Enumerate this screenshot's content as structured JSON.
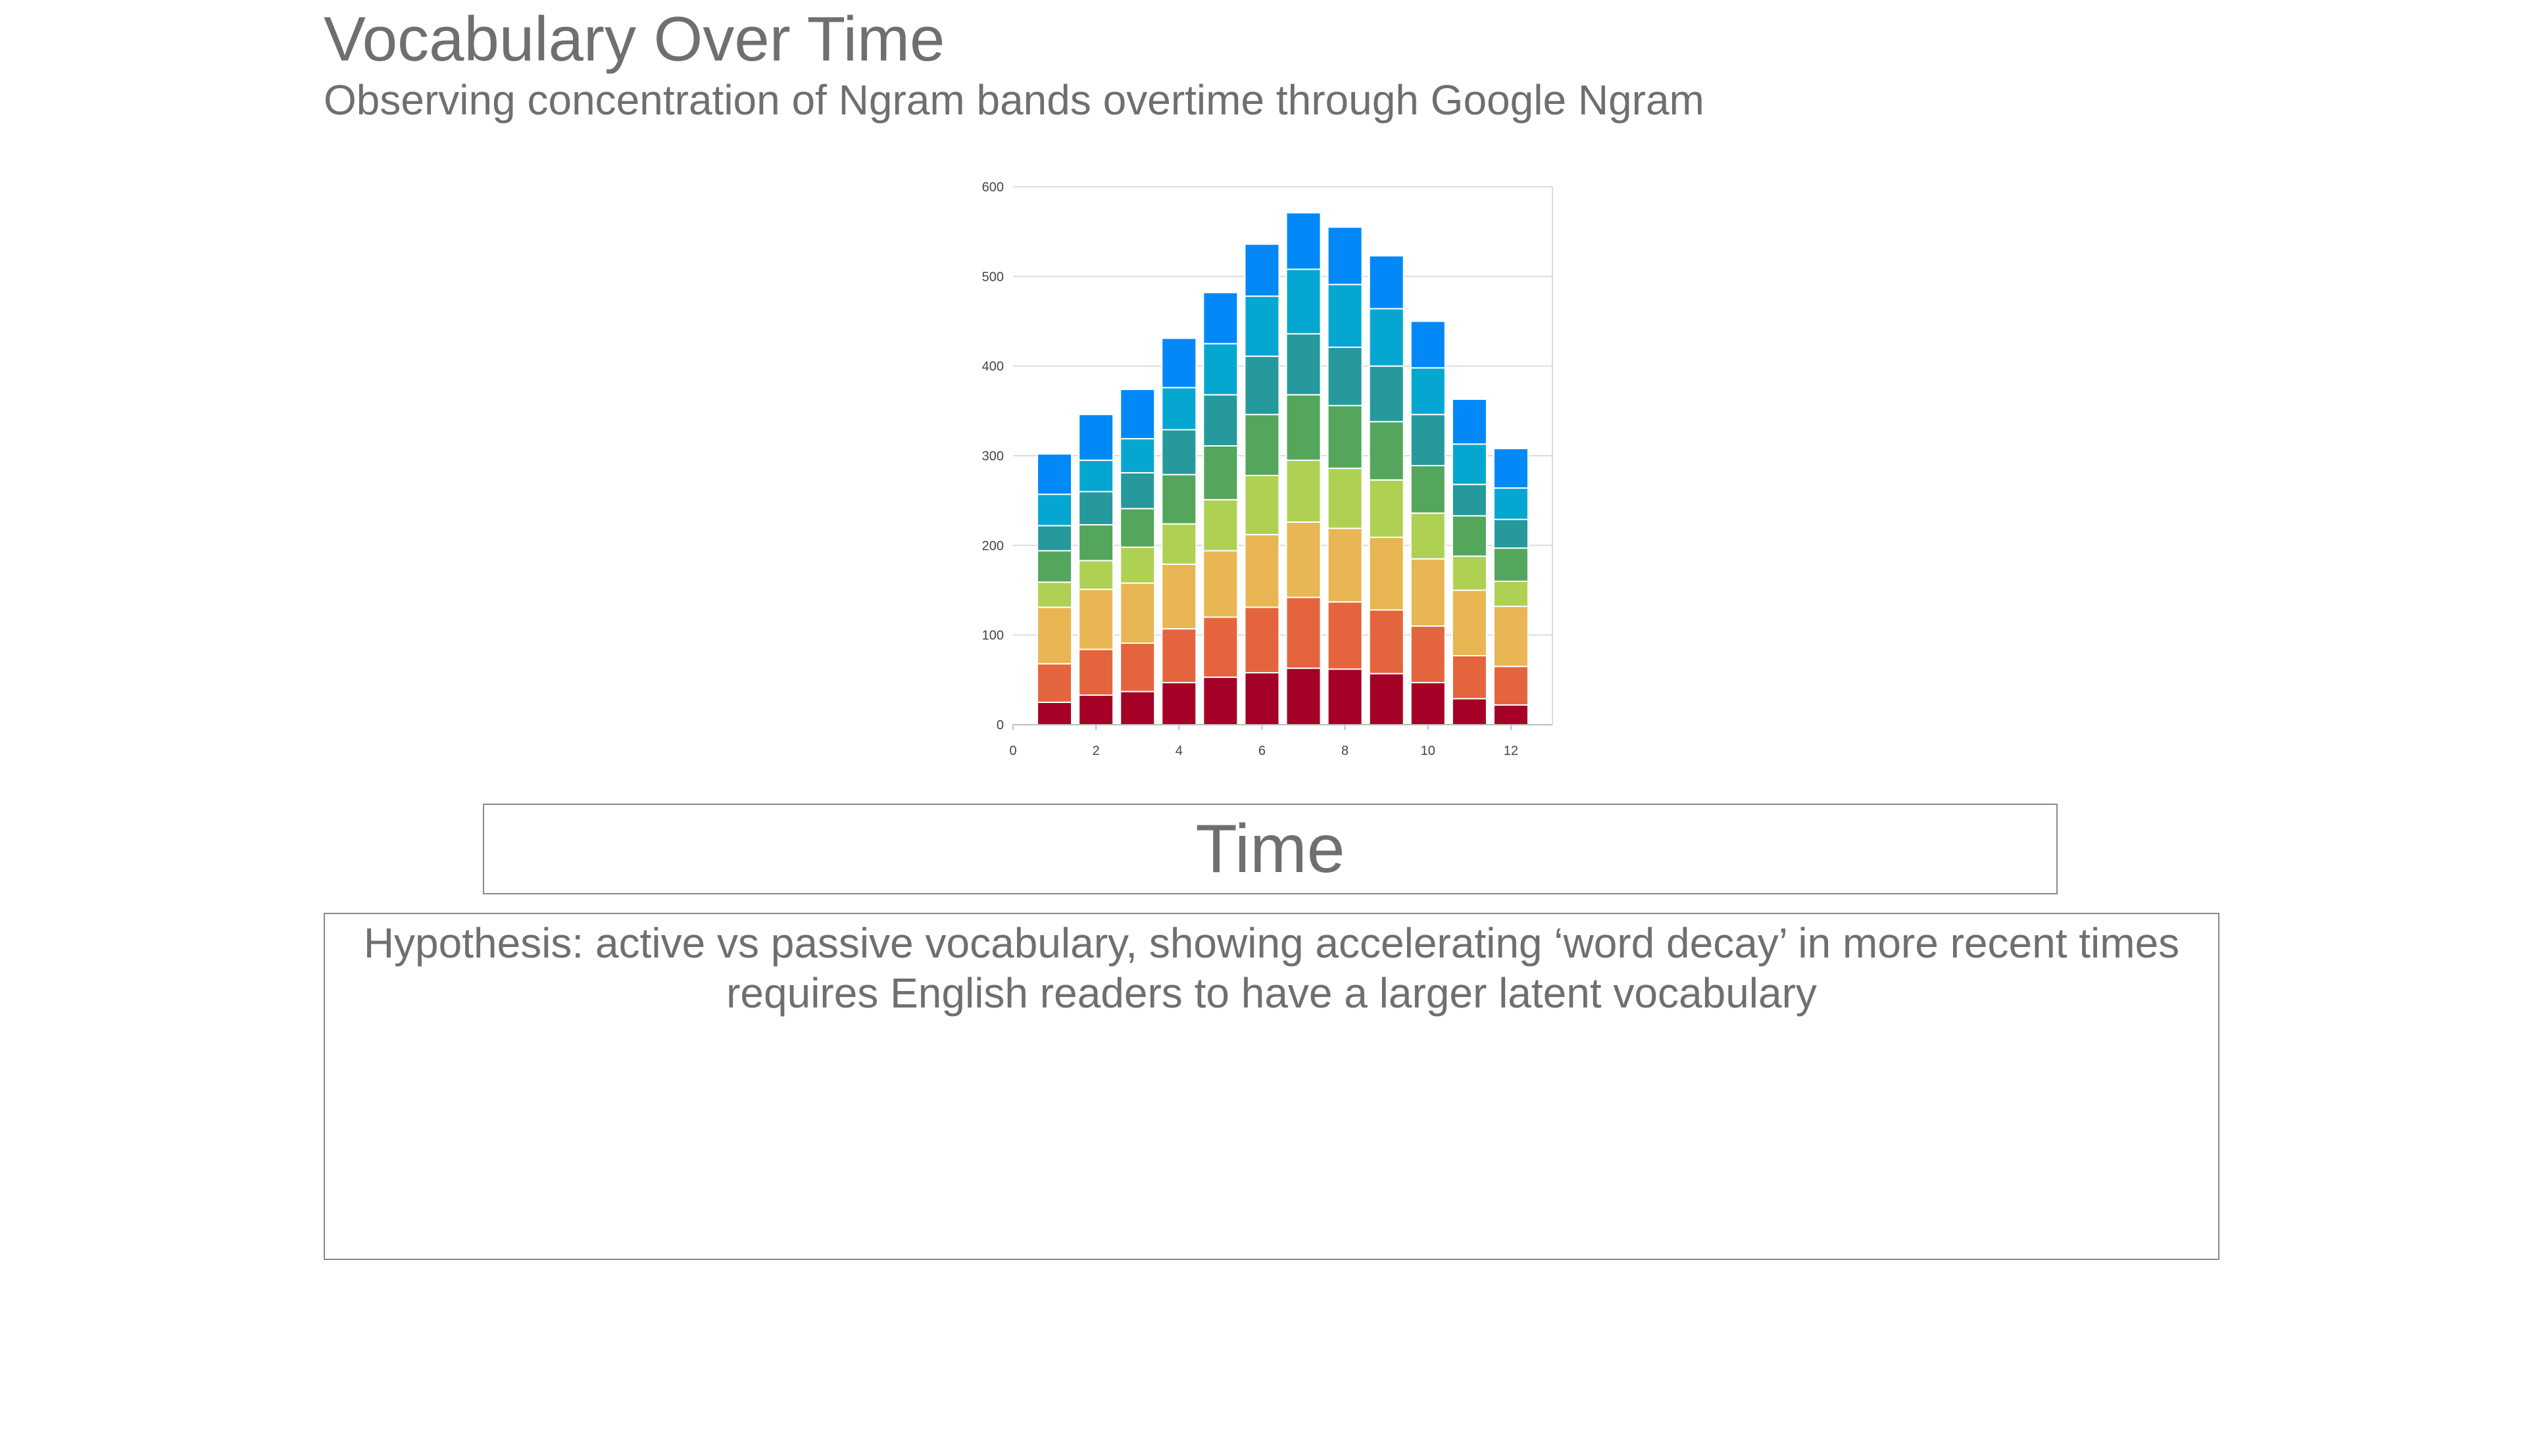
{
  "slide": {
    "title": "Vocabulary Over Time",
    "subtitle": "Observing concentration of Ngram bands overtime through Google Ngram",
    "axis_label": "Time",
    "hypothesis_line1": "Hypothesis: active vs passive vocabulary, showing accelerating ‘word decay’ in more recent times",
    "hypothesis_line2": "requires English readers to have a larger latent vocabulary"
  },
  "chart_data": {
    "type": "bar",
    "stacked": true,
    "x": [
      1,
      2,
      3,
      4,
      5,
      6,
      7,
      8,
      9,
      10,
      11,
      12
    ],
    "xlim": [
      0,
      13
    ],
    "ylim": [
      0,
      600
    ],
    "xticks": [
      0,
      2,
      4,
      6,
      8,
      10,
      12
    ],
    "yticks": [
      0,
      100,
      200,
      300,
      400,
      500,
      600
    ],
    "grid": true,
    "legend": "none",
    "series": [
      {
        "color": "#a50026",
        "values": [
          25,
          33,
          37,
          47,
          53,
          58,
          63,
          62,
          57,
          47,
          29,
          22
        ]
      },
      {
        "color": "#e4653d",
        "values": [
          43,
          51,
          54,
          60,
          67,
          73,
          79,
          75,
          71,
          63,
          48,
          43
        ]
      },
      {
        "color": "#e8b653",
        "values": [
          63,
          67,
          67,
          72,
          74,
          81,
          84,
          82,
          81,
          75,
          73,
          67
        ]
      },
      {
        "color": "#afd153",
        "values": [
          28,
          32,
          40,
          45,
          57,
          66,
          69,
          67,
          64,
          51,
          38,
          28
        ]
      },
      {
        "color": "#53a65c",
        "values": [
          35,
          40,
          43,
          55,
          60,
          68,
          73,
          70,
          65,
          53,
          45,
          37
        ]
      },
      {
        "color": "#25999c",
        "values": [
          28,
          37,
          40,
          50,
          57,
          65,
          68,
          65,
          62,
          57,
          35,
          32
        ]
      },
      {
        "color": "#05a7d1",
        "values": [
          35,
          35,
          38,
          47,
          57,
          67,
          72,
          70,
          64,
          52,
          45,
          35
        ]
      },
      {
        "color": "#0388f8",
        "values": [
          45,
          51,
          55,
          55,
          57,
          58,
          63,
          64,
          59,
          52,
          50,
          44
        ]
      }
    ]
  }
}
